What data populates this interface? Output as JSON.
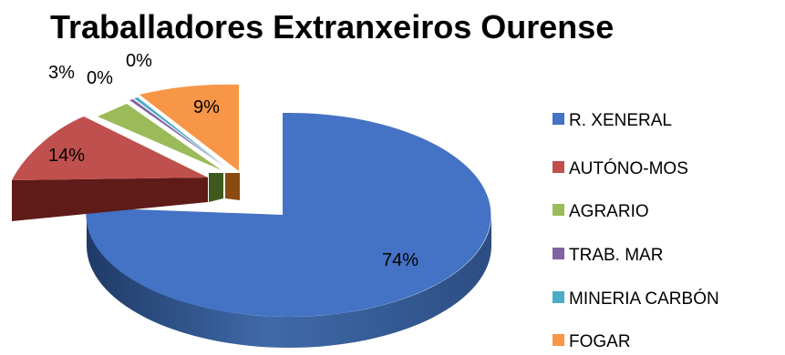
{
  "chart_data": {
    "type": "pie",
    "title": "Traballadores Extranxeiros  Ourense",
    "categories": [
      "R. XENERAL",
      "AUTÓNO-MOS",
      "AGRARIO",
      "TRAB. MAR",
      "MINERIA CARBÓN",
      "FOGAR"
    ],
    "values": [
      74,
      14,
      3,
      0,
      0,
      9
    ],
    "labels": [
      "74%",
      "14%",
      "3%",
      "0%",
      "0%",
      "9%"
    ],
    "colors": [
      "#4472c4",
      "#c0504d",
      "#9bbb59",
      "#8064a2",
      "#4bacc6",
      "#f79646"
    ],
    "legend_position": "right",
    "style": "3d-exploded"
  }
}
